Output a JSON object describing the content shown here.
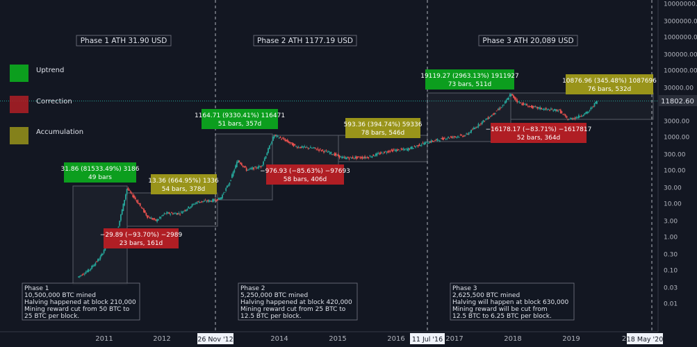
{
  "chart_data": {
    "type": "candlestick",
    "title": "",
    "xlabel": "",
    "ylabel": "",
    "y_scale": "log",
    "ylim": [
      0.003,
      20000000
    ],
    "grid": false,
    "x_ticks": [
      "2011",
      "2012",
      "2014",
      "2015",
      "2016",
      "2017",
      "2018",
      "2019",
      "2"
    ],
    "x_marker_labels": [
      "26 Nov '12",
      "11 Jul '16",
      "18 May '20"
    ],
    "y_ticks": [
      "10000000.00",
      "3000000.00",
      "1000000.00",
      "300000.00",
      "100000.00",
      "30000.00",
      "10000.00",
      "3000.00",
      "1000.00",
      "300.00",
      "100.00",
      "30.00",
      "10.00",
      "3.00",
      "1.00",
      "0.30",
      "0.10",
      "0.03",
      "0.01"
    ],
    "last_price": "11802.60",
    "last_price_value": 11802.6,
    "price_path": [
      [
        2010.55,
        0.06
      ],
      [
        2010.75,
        0.1
      ],
      [
        2010.95,
        0.25
      ],
      [
        2011.1,
        0.9
      ],
      [
        2011.25,
        2.0
      ],
      [
        2011.4,
        28
      ],
      [
        2011.55,
        13
      ],
      [
        2011.75,
        4
      ],
      [
        2011.9,
        3
      ],
      [
        2012.05,
        5
      ],
      [
        2012.3,
        5
      ],
      [
        2012.6,
        11
      ],
      [
        2012.85,
        12
      ],
      [
        2013.0,
        14
      ],
      [
        2013.15,
        40
      ],
      [
        2013.3,
        200
      ],
      [
        2013.45,
        100
      ],
      [
        2013.7,
        130
      ],
      [
        2013.92,
        1100
      ],
      [
        2014.1,
        800
      ],
      [
        2014.3,
        500
      ],
      [
        2014.6,
        450
      ],
      [
        2014.9,
        320
      ],
      [
        2015.1,
        230
      ],
      [
        2015.5,
        240
      ],
      [
        2015.9,
        380
      ],
      [
        2016.2,
        420
      ],
      [
        2016.5,
        650
      ],
      [
        2016.9,
        950
      ],
      [
        2017.2,
        1100
      ],
      [
        2017.45,
        2500
      ],
      [
        2017.65,
        4500
      ],
      [
        2017.85,
        9000
      ],
      [
        2017.97,
        19000
      ],
      [
        2018.1,
        11000
      ],
      [
        2018.3,
        8000
      ],
      [
        2018.6,
        6500
      ],
      [
        2018.8,
        6200
      ],
      [
        2018.95,
        3300
      ],
      [
        2019.1,
        3800
      ],
      [
        2019.3,
        5500
      ],
      [
        2019.45,
        11800
      ]
    ],
    "phase_titles": [
      "Phase 1 ATH 31.90 USD",
      "Phase 2 ATH 1177.19 USD",
      "Phase 3 ATH 20,089 USD"
    ],
    "legend": [
      {
        "label": "Uptrend",
        "color": "#0c9e1e"
      },
      {
        "label": "Correction",
        "color": "#b01e24"
      },
      {
        "label": "Accumulation",
        "color": "#99941a"
      }
    ],
    "annotations": [
      {
        "kind": "uptrend",
        "line1": "31.86 (81533.49%) 3186",
        "line2": "49 bars"
      },
      {
        "kind": "correction",
        "line1": "−29.89 (−93.70%) −2989",
        "line2": "23 bars, 161d"
      },
      {
        "kind": "accumulation",
        "line1": "13.36 (664.95%) 1336",
        "line2": "54 bars, 378d"
      },
      {
        "kind": "uptrend",
        "line1": "1164.71 (9330.41%) 116471",
        "line2": "51 bars, 357d"
      },
      {
        "kind": "correction",
        "line1": "−976.93 (−85.63%) −97693",
        "line2": "58 bars, 406d"
      },
      {
        "kind": "accumulation",
        "line1": "593.36 (394.74%) 59336",
        "line2": "78 bars, 546d"
      },
      {
        "kind": "uptrend",
        "line1": "19119.27 (2963.13%) 1911927",
        "line2": "73 bars, 511d"
      },
      {
        "kind": "correction",
        "line1": "−16178.17 (−83.71%) −1617817",
        "line2": "52 bars, 364d"
      },
      {
        "kind": "accumulation",
        "line1": "10876.96 (345.48%) 1087696",
        "line2": "76 bars, 532d"
      }
    ],
    "notes": [
      {
        "lines": [
          "Phase 1",
          "10,500,000 BTC mined",
          "Halving happened at block 210,000",
          "Mining reward cut from 50 BTC to",
          "25 BTC per block."
        ]
      },
      {
        "lines": [
          "Phase 2",
          "5,250,000 BTC mined",
          "Halving happened at block 420,000",
          "Mining reward cut from 25 BTC to",
          "12.5 BTC per block."
        ]
      },
      {
        "lines": [
          "Phase 3",
          "2,625,500 BTC mined",
          "Halving will happen at block 630,000",
          "Mining reward will be cut from",
          "12.5 BTC to 6.25 BTC per block."
        ]
      }
    ],
    "colors": {
      "background": "#131722",
      "up": "#26a69a",
      "down": "#ef5350",
      "text": "#b2b5be",
      "price_tag": "#2a2e39"
    }
  }
}
